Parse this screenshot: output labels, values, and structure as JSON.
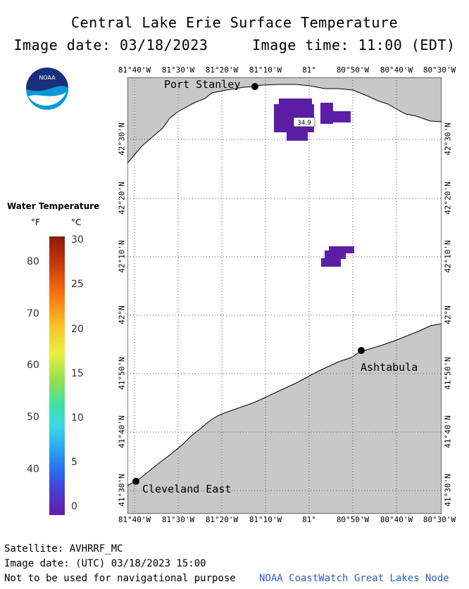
{
  "header": {
    "title": "Central Lake Erie Surface Temperature",
    "image_date_label": "Image date: 03/18/2023",
    "image_time_label": "Image time: 11:00 (EDT)"
  },
  "logo": {
    "text": "NOAA"
  },
  "map": {
    "lon_labels": [
      "81°40'W",
      "81°30'W",
      "81°20'W",
      "81°10'W",
      "81°",
      "80°50'W",
      "80°40'W",
      "80°30'W"
    ],
    "lat_labels": [
      "42°30'N",
      "42°20'N",
      "42°10'N",
      "42°N",
      "41°50'N",
      "41°40'N",
      "41°30'N"
    ],
    "cities": [
      {
        "name": "Port Stanley"
      },
      {
        "name": "Ashtabula"
      },
      {
        "name": "Cleveland East"
      }
    ],
    "data_label": "34.9",
    "colors": {
      "land": "#c8c8c8",
      "water": "#ffffff",
      "cold_pixel": "#5b1fa6"
    }
  },
  "legend": {
    "title": "Water Temperature",
    "unit_f": "°F",
    "unit_c": "°C",
    "f_ticks": [
      "80",
      "70",
      "60",
      "50",
      "40"
    ],
    "c_ticks": [
      "30",
      "25",
      "20",
      "15",
      "10",
      "5",
      "0"
    ]
  },
  "footer": {
    "satellite": "Satellite: AVHRRF_MC",
    "utc_date": "Image date: (UTC) 03/18/2023  15:00",
    "disclaimer": "Not to be used for navigational purpose",
    "credit": "NOAA CoastWatch Great Lakes Node"
  }
}
